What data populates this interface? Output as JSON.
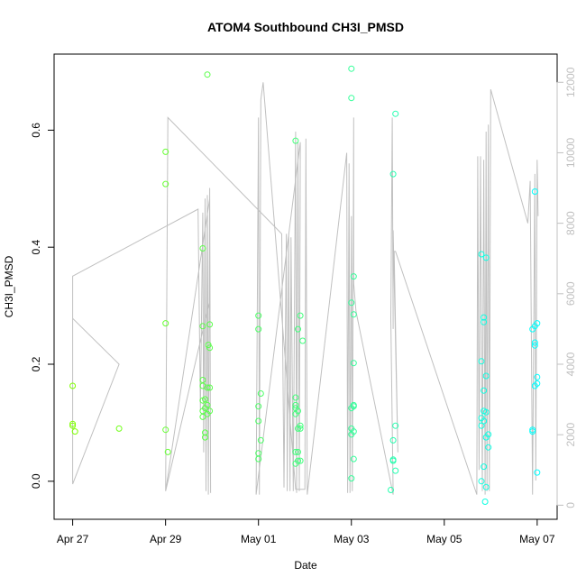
{
  "chart_data": {
    "type": "scatter",
    "title": "ATOM4 Southbound CH3I_PMSD",
    "xlabel": "Date",
    "ylabel": "CH3I_PMSD",
    "x_ticks": [
      "Apr 27",
      "Apr 29",
      "May 01",
      "May 03",
      "May 05",
      "May 07"
    ],
    "x_tick_days": [
      0,
      2,
      4,
      6,
      8,
      10
    ],
    "y_ticks": [
      "0.0",
      "0.2",
      "0.4",
      "0.6"
    ],
    "y_tick_values": [
      0.0,
      0.2,
      0.4,
      0.6
    ],
    "ylim": [
      -0.065,
      0.73
    ],
    "xlim_days": [
      -0.4,
      10.43
    ],
    "y2_ticks": [
      "0",
      "2000",
      "4000",
      "6000",
      "8000",
      "10000",
      "12000"
    ],
    "y2_tick_values": [
      0,
      2000,
      4000,
      6000,
      8000,
      10000,
      12000
    ],
    "y2lim": [
      -400,
      12800
    ],
    "grid": false,
    "legend": "none",
    "point_color_gradient": [
      "#7fff00",
      "#00ffff"
    ],
    "line_color": "#c0c0c0",
    "points": [
      [
        0.0,
        0.163
      ],
      [
        0.0,
        0.098
      ],
      [
        0.0,
        0.095
      ],
      [
        0.05,
        0.085
      ],
      [
        1.0,
        0.09
      ],
      [
        2.0,
        0.563
      ],
      [
        2.0,
        0.508
      ],
      [
        2.0,
        0.27
      ],
      [
        2.0,
        0.088
      ],
      [
        2.05,
        0.05
      ],
      [
        2.8,
        0.398
      ],
      [
        2.8,
        0.265
      ],
      [
        2.8,
        0.173
      ],
      [
        2.8,
        0.163
      ],
      [
        2.8,
        0.138
      ],
      [
        2.8,
        0.12
      ],
      [
        2.8,
        0.11
      ],
      [
        2.85,
        0.14
      ],
      [
        2.85,
        0.125
      ],
      [
        2.85,
        0.083
      ],
      [
        2.85,
        0.075
      ],
      [
        2.9,
        0.16
      ],
      [
        2.9,
        0.13
      ],
      [
        2.9,
        0.115
      ],
      [
        2.92,
        0.233
      ],
      [
        2.95,
        0.228
      ],
      [
        2.95,
        0.268
      ],
      [
        2.95,
        0.16
      ],
      [
        2.95,
        0.12
      ],
      [
        2.9,
        0.695
      ],
      [
        4.0,
        0.283
      ],
      [
        4.0,
        0.26
      ],
      [
        4.05,
        0.15
      ],
      [
        4.0,
        0.128
      ],
      [
        4.0,
        0.103
      ],
      [
        4.05,
        0.07
      ],
      [
        4.0,
        0.048
      ],
      [
        4.0,
        0.038
      ],
      [
        4.8,
        0.582
      ],
      [
        4.8,
        0.143
      ],
      [
        4.8,
        0.13
      ],
      [
        4.8,
        0.125
      ],
      [
        4.8,
        0.115
      ],
      [
        4.8,
        0.05
      ],
      [
        4.8,
        0.03
      ],
      [
        4.85,
        0.26
      ],
      [
        4.85,
        0.12
      ],
      [
        4.85,
        0.09
      ],
      [
        4.85,
        0.05
      ],
      [
        4.85,
        0.035
      ],
      [
        4.9,
        0.283
      ],
      [
        4.9,
        0.095
      ],
      [
        4.9,
        0.09
      ],
      [
        4.9,
        0.035
      ],
      [
        4.95,
        0.24
      ],
      [
        6.0,
        0.705
      ],
      [
        6.0,
        0.655
      ],
      [
        6.0,
        0.305
      ],
      [
        6.0,
        0.125
      ],
      [
        6.0,
        0.09
      ],
      [
        6.0,
        0.08
      ],
      [
        6.0,
        0.005
      ],
      [
        6.05,
        0.35
      ],
      [
        6.05,
        0.285
      ],
      [
        6.05,
        0.202
      ],
      [
        6.05,
        0.13
      ],
      [
        6.05,
        0.128
      ],
      [
        6.05,
        0.085
      ],
      [
        6.05,
        0.038
      ],
      [
        6.9,
        0.525
      ],
      [
        6.95,
        0.628
      ],
      [
        6.9,
        0.07
      ],
      [
        6.9,
        0.037
      ],
      [
        6.9,
        0.035
      ],
      [
        6.85,
        -0.015
      ],
      [
        6.95,
        0.095
      ],
      [
        6.95,
        0.018
      ],
      [
        8.8,
        0.388
      ],
      [
        8.85,
        0.28
      ],
      [
        8.85,
        0.272
      ],
      [
        8.8,
        0.205
      ],
      [
        8.85,
        0.155
      ],
      [
        8.8,
        0.108
      ],
      [
        8.8,
        0.095
      ],
      [
        8.85,
        0.12
      ],
      [
        8.85,
        0.103
      ],
      [
        8.85,
        0.025
      ],
      [
        8.8,
        0.0
      ],
      [
        8.9,
        0.382
      ],
      [
        8.9,
        0.18
      ],
      [
        8.9,
        0.118
      ],
      [
        8.9,
        0.075
      ],
      [
        8.95,
        0.08
      ],
      [
        8.95,
        0.058
      ],
      [
        8.9,
        -0.01
      ],
      [
        8.88,
        -0.035
      ],
      [
        9.95,
        0.495
      ],
      [
        10.0,
        0.27
      ],
      [
        9.95,
        0.265
      ],
      [
        9.9,
        0.26
      ],
      [
        9.95,
        0.237
      ],
      [
        9.95,
        0.232
      ],
      [
        10.0,
        0.178
      ],
      [
        9.95,
        0.163
      ],
      [
        10.0,
        0.167
      ],
      [
        9.9,
        0.088
      ],
      [
        9.9,
        0.085
      ],
      [
        10.0,
        0.015
      ]
    ],
    "line_right_axis": [
      [
        0.0,
        5300
      ],
      [
        0.0,
        600
      ],
      [
        0.0,
        5300
      ],
      [
        1.0,
        4000
      ],
      [
        0.0,
        600
      ],
      [
        0.0,
        6500
      ],
      [
        2.7,
        8400
      ],
      [
        2.75,
        2700
      ],
      [
        2.8,
        8300
      ],
      [
        2.82,
        1500
      ],
      [
        2.85,
        8700
      ],
      [
        2.87,
        400
      ],
      [
        2.9,
        8800
      ],
      [
        2.92,
        300
      ],
      [
        2.95,
        9000
      ],
      [
        2.97,
        350
      ],
      [
        2.95,
        8700
      ],
      [
        2.0,
        400
      ],
      [
        2.95,
        5800
      ],
      [
        2.0,
        400
      ],
      [
        2.05,
        11000
      ],
      [
        4.5,
        7700
      ],
      [
        4.55,
        500
      ],
      [
        4.6,
        7700
      ],
      [
        4.62,
        400
      ],
      [
        4.65,
        7700
      ],
      [
        4.68,
        400
      ],
      [
        4.7,
        7600
      ],
      [
        4.75,
        400
      ],
      [
        4.8,
        10600
      ],
      [
        4.82,
        350
      ],
      [
        4.85,
        10300
      ],
      [
        4.88,
        400
      ],
      [
        4.9,
        10300
      ],
      [
        3.95,
        300
      ],
      [
        4.0,
        11000
      ],
      [
        4.02,
        300
      ],
      [
        4.05,
        11500
      ],
      [
        4.1,
        12000
      ],
      [
        4.8,
        450
      ],
      [
        5.0,
        450
      ],
      [
        5.02,
        10400
      ],
      [
        5.05,
        300
      ],
      [
        5.9,
        10000
      ],
      [
        5.92,
        350
      ],
      [
        5.95,
        9700
      ],
      [
        5.97,
        350
      ],
      [
        6.0,
        8200
      ],
      [
        6.02,
        400
      ],
      [
        6.05,
        11000
      ],
      [
        6.05,
        6300
      ],
      [
        6.1,
        5500
      ],
      [
        6.9,
        300
      ],
      [
        6.85,
        5300
      ],
      [
        6.88,
        11000
      ],
      [
        6.9,
        5000
      ],
      [
        6.9,
        7800
      ],
      [
        7.0,
        1500
      ],
      [
        6.92,
        7200
      ],
      [
        6.95,
        7200
      ],
      [
        8.7,
        300
      ],
      [
        8.72,
        9900
      ],
      [
        8.75,
        1000
      ],
      [
        8.78,
        9900
      ],
      [
        8.82,
        400
      ],
      [
        8.85,
        9800
      ],
      [
        8.88,
        300
      ],
      [
        8.9,
        10600
      ],
      [
        8.92,
        400
      ],
      [
        8.95,
        10800
      ],
      [
        8.97,
        400
      ],
      [
        9.0,
        11800
      ],
      [
        9.8,
        8000
      ],
      [
        9.85,
        9200
      ],
      [
        9.9,
        300
      ],
      [
        9.95,
        9400
      ],
      [
        9.97,
        700
      ],
      [
        10.0,
        9800
      ],
      [
        10.02,
        8200
      ]
    ]
  }
}
